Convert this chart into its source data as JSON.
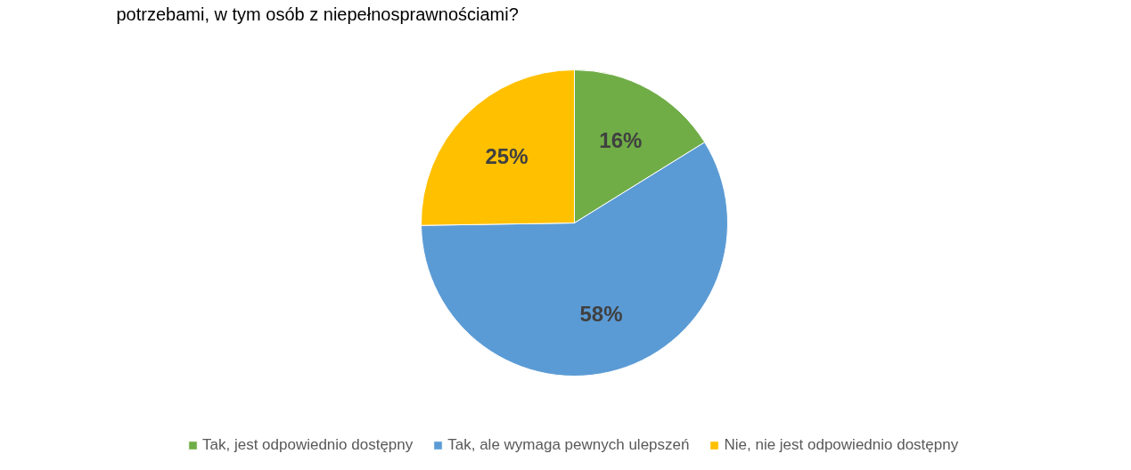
{
  "chart_data": {
    "type": "pie",
    "title": "potrzebami, w tym osób z niepełnosprawnościami?",
    "categories": [
      "Tak, jest odpowiednio dostępny",
      "Tak, ale wymaga pewnych ulepszeń",
      "Nie, nie jest odpowiednio dostępny"
    ],
    "values": [
      16,
      58,
      25
    ],
    "colors": [
      "#70ad47",
      "#5b9bd5",
      "#ffc000"
    ],
    "value_labels": [
      "16%",
      "58%",
      "25%"
    ],
    "legend": "bottom"
  }
}
